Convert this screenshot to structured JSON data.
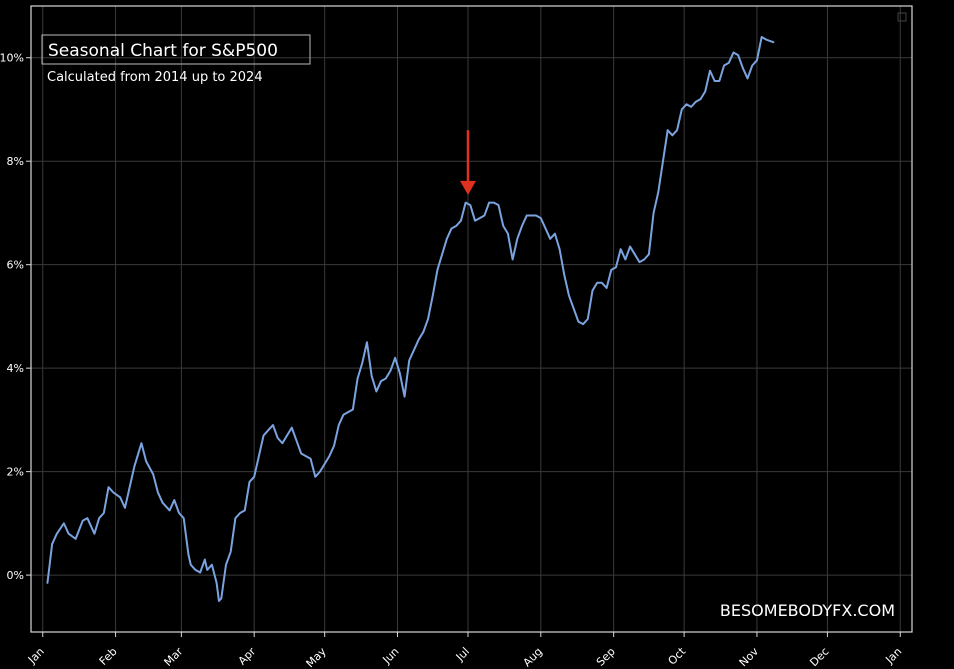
{
  "colors": {
    "background": "#000000",
    "grid": "#3a3a3a",
    "axes": "#d8d8d8",
    "line": "#7aa3e0",
    "arrow": "#e0301e",
    "text": "#ffffff"
  },
  "chart_data": {
    "type": "line",
    "title": "Seasonal Chart for S&P500",
    "subtitle": "Calculated from 2014 up to 2024",
    "watermark": "BESOMEBODYFX.COM",
    "xlabel": "",
    "ylabel": "",
    "x_unit": "day-of-year",
    "xlim": [
      -5,
      370
    ],
    "ylim": [
      -1.1,
      11.0
    ],
    "grid": true,
    "legend": "none",
    "x_ticks": [
      {
        "label": "Jan",
        "x": 0
      },
      {
        "label": "Feb",
        "x": 31
      },
      {
        "label": "Mar",
        "x": 59
      },
      {
        "label": "Apr",
        "x": 90
      },
      {
        "label": "May",
        "x": 120
      },
      {
        "label": "Jun",
        "x": 151
      },
      {
        "label": "Jul",
        "x": 181
      },
      {
        "label": "Aug",
        "x": 212
      },
      {
        "label": "Sep",
        "x": 243
      },
      {
        "label": "Oct",
        "x": 273
      },
      {
        "label": "Nov",
        "x": 304
      },
      {
        "label": "Dec",
        "x": 334
      },
      {
        "label": "Jan",
        "x": 365
      }
    ],
    "y_ticks": [
      {
        "label": "0%",
        "y": 0
      },
      {
        "label": "2%",
        "y": 2
      },
      {
        "label": "4%",
        "y": 4
      },
      {
        "label": "6%",
        "y": 6
      },
      {
        "label": "8%",
        "y": 8
      },
      {
        "label": "10%",
        "y": 10
      }
    ],
    "series": [
      {
        "points": [
          [
            2,
            -0.15
          ],
          [
            4,
            0.6
          ],
          [
            6,
            0.8
          ],
          [
            9,
            1.0
          ],
          [
            11,
            0.8
          ],
          [
            14,
            0.7
          ],
          [
            17,
            1.05
          ],
          [
            19,
            1.1
          ],
          [
            22,
            0.8
          ],
          [
            24,
            1.1
          ],
          [
            26,
            1.2
          ],
          [
            28,
            1.7
          ],
          [
            30,
            1.6
          ],
          [
            33,
            1.5
          ],
          [
            35,
            1.3
          ],
          [
            37,
            1.7
          ],
          [
            39,
            2.1
          ],
          [
            42,
            2.55
          ],
          [
            44,
            2.2
          ],
          [
            47,
            1.95
          ],
          [
            49,
            1.6
          ],
          [
            51,
            1.4
          ],
          [
            54,
            1.25
          ],
          [
            56,
            1.45
          ],
          [
            58,
            1.2
          ],
          [
            60,
            1.1
          ],
          [
            62,
            0.4
          ],
          [
            63,
            0.2
          ],
          [
            65,
            0.1
          ],
          [
            67,
            0.05
          ],
          [
            69,
            0.3
          ],
          [
            70,
            0.1
          ],
          [
            72,
            0.2
          ],
          [
            74,
            -0.15
          ],
          [
            75,
            -0.5
          ],
          [
            76,
            -0.45
          ],
          [
            78,
            0.2
          ],
          [
            80,
            0.45
          ],
          [
            82,
            1.1
          ],
          [
            84,
            1.2
          ],
          [
            86,
            1.25
          ],
          [
            88,
            1.8
          ],
          [
            90,
            1.9
          ],
          [
            92,
            2.3
          ],
          [
            94,
            2.7
          ],
          [
            96,
            2.8
          ],
          [
            98,
            2.9
          ],
          [
            100,
            2.65
          ],
          [
            102,
            2.55
          ],
          [
            104,
            2.7
          ],
          [
            106,
            2.85
          ],
          [
            108,
            2.6
          ],
          [
            110,
            2.35
          ],
          [
            112,
            2.3
          ],
          [
            114,
            2.25
          ],
          [
            116,
            1.9
          ],
          [
            118,
            2.0
          ],
          [
            120,
            2.15
          ],
          [
            122,
            2.3
          ],
          [
            124,
            2.5
          ],
          [
            126,
            2.9
          ],
          [
            128,
            3.1
          ],
          [
            130,
            3.15
          ],
          [
            132,
            3.2
          ],
          [
            134,
            3.8
          ],
          [
            136,
            4.1
          ],
          [
            138,
            4.5
          ],
          [
            140,
            3.85
          ],
          [
            142,
            3.55
          ],
          [
            144,
            3.75
          ],
          [
            146,
            3.8
          ],
          [
            148,
            3.95
          ],
          [
            150,
            4.2
          ],
          [
            152,
            3.9
          ],
          [
            154,
            3.45
          ],
          [
            156,
            4.15
          ],
          [
            158,
            4.35
          ],
          [
            160,
            4.55
          ],
          [
            162,
            4.7
          ],
          [
            164,
            4.95
          ],
          [
            166,
            5.4
          ],
          [
            168,
            5.9
          ],
          [
            170,
            6.2
          ],
          [
            172,
            6.5
          ],
          [
            174,
            6.7
          ],
          [
            176,
            6.75
          ],
          [
            178,
            6.85
          ],
          [
            180,
            7.2
          ],
          [
            182,
            7.15
          ],
          [
            184,
            6.85
          ],
          [
            186,
            6.9
          ],
          [
            188,
            6.95
          ],
          [
            190,
            7.2
          ],
          [
            192,
            7.2
          ],
          [
            194,
            7.15
          ],
          [
            196,
            6.75
          ],
          [
            198,
            6.6
          ],
          [
            200,
            6.1
          ],
          [
            202,
            6.5
          ],
          [
            204,
            6.75
          ],
          [
            206,
            6.95
          ],
          [
            208,
            6.95
          ],
          [
            210,
            6.95
          ],
          [
            212,
            6.9
          ],
          [
            214,
            6.7
          ],
          [
            216,
            6.5
          ],
          [
            218,
            6.6
          ],
          [
            220,
            6.3
          ],
          [
            222,
            5.8
          ],
          [
            224,
            5.4
          ],
          [
            226,
            5.15
          ],
          [
            228,
            4.9
          ],
          [
            230,
            4.85
          ],
          [
            232,
            4.95
          ],
          [
            234,
            5.5
          ],
          [
            236,
            5.65
          ],
          [
            238,
            5.65
          ],
          [
            240,
            5.55
          ],
          [
            242,
            5.9
          ],
          [
            244,
            5.95
          ],
          [
            246,
            6.3
          ],
          [
            248,
            6.1
          ],
          [
            250,
            6.35
          ],
          [
            252,
            6.2
          ],
          [
            254,
            6.05
          ],
          [
            256,
            6.1
          ],
          [
            258,
            6.2
          ],
          [
            260,
            7.0
          ],
          [
            262,
            7.4
          ],
          [
            264,
            8.0
          ],
          [
            266,
            8.6
          ],
          [
            268,
            8.5
          ],
          [
            270,
            8.6
          ],
          [
            272,
            9.0
          ],
          [
            274,
            9.1
          ],
          [
            276,
            9.05
          ],
          [
            278,
            9.15
          ],
          [
            280,
            9.2
          ],
          [
            282,
            9.35
          ],
          [
            284,
            9.75
          ],
          [
            286,
            9.55
          ],
          [
            288,
            9.55
          ],
          [
            290,
            9.85
          ],
          [
            292,
            9.9
          ],
          [
            294,
            10.1
          ],
          [
            296,
            10.05
          ],
          [
            298,
            9.8
          ],
          [
            300,
            9.6
          ],
          [
            302,
            9.85
          ],
          [
            304,
            9.95
          ],
          [
            306,
            10.4
          ],
          [
            308,
            10.35
          ],
          [
            311,
            10.3
          ]
        ]
      }
    ],
    "annotations": [
      {
        "type": "arrow",
        "x": 181,
        "y_from": 8.6,
        "y_to": 7.35
      }
    ]
  }
}
